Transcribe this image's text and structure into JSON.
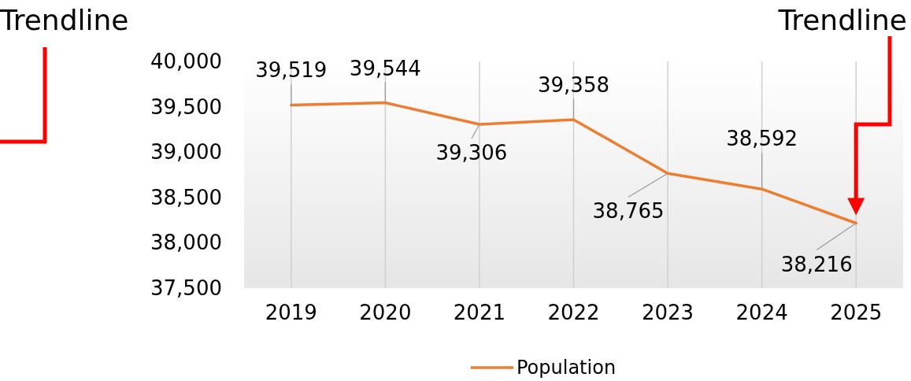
{
  "chart_data": {
    "type": "line",
    "categories": [
      "2019",
      "2020",
      "2021",
      "2022",
      "2023",
      "2024",
      "2025"
    ],
    "series": [
      {
        "name": "Population",
        "color": "#ed7d31",
        "values": [
          39519,
          39544,
          39306,
          39358,
          38765,
          38592,
          38216
        ]
      }
    ],
    "ylim": [
      37500,
      40000
    ],
    "yticks": [
      {
        "value": 37500,
        "label": "37,500"
      },
      {
        "value": 38000,
        "label": "38,000"
      },
      {
        "value": 38500,
        "label": "38,500"
      },
      {
        "value": 39000,
        "label": "39,000"
      },
      {
        "value": 39500,
        "label": "39,500"
      },
      {
        "value": 40000,
        "label": "40,000"
      }
    ],
    "grid": "x",
    "legend": "bottom",
    "marker": "none",
    "line_style": "solid",
    "value_labels": [
      "39,519",
      "39,544",
      "39,306",
      "39,358",
      "38,765",
      "38,592",
      "38,216"
    ],
    "annotations": [
      "Trendline",
      "Trendline"
    ]
  }
}
